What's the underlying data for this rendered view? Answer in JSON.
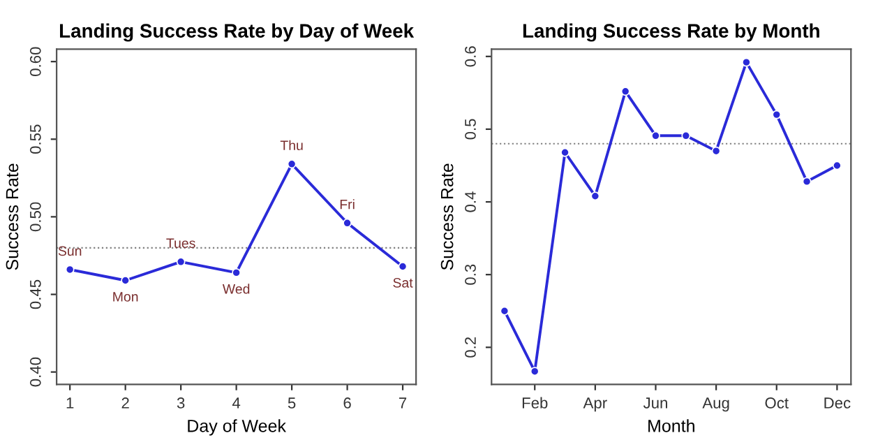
{
  "chart_data": [
    {
      "type": "line",
      "title": "Landing Success Rate by Day of Week",
      "xlabel": "Day of Week",
      "ylabel": "Success Rate",
      "x": [
        1,
        2,
        3,
        4,
        5,
        6,
        7
      ],
      "series": [
        {
          "color": "#2a2ad8",
          "values": [
            0.466,
            0.459,
            0.471,
            0.464,
            0.534,
            0.496,
            0.468
          ]
        }
      ],
      "xlim": [
        0.76,
        7.24
      ],
      "xticks": [
        1,
        2,
        3,
        4,
        5,
        6,
        7
      ],
      "ylim": [
        0.392,
        0.608
      ],
      "yticks": [
        {
          "value": 0.4,
          "label": "0.40"
        },
        {
          "value": 0.45,
          "label": "0.45"
        },
        {
          "value": 0.5,
          "label": "0.50"
        },
        {
          "value": 0.55,
          "label": "0.55"
        },
        {
          "value": 0.6,
          "label": "0.60"
        }
      ],
      "ref_lines": [
        {
          "axis": "y",
          "value": 0.48,
          "color": "#808080",
          "line_style": "dotted"
        }
      ],
      "annotations": [
        {
          "text": "Sun",
          "x": 1,
          "y": 0.466
        },
        {
          "text": "Mon",
          "x": 2,
          "y": 0.459
        },
        {
          "text": "Tues",
          "x": 3,
          "y": 0.471
        },
        {
          "text": "Wed",
          "x": 4,
          "y": 0.464
        },
        {
          "text": "Thu",
          "x": 5,
          "y": 0.534
        },
        {
          "text": "Fri",
          "x": 6,
          "y": 0.496
        },
        {
          "text": "Sat",
          "x": 7,
          "y": 0.468
        }
      ],
      "marker": "circle",
      "line_style": "solid",
      "grid": false,
      "legend": false
    },
    {
      "type": "line",
      "title": "Landing Success Rate by Month",
      "xlabel": "Month",
      "ylabel": "Success Rate",
      "categories": [
        null,
        "Feb",
        null,
        "Apr",
        null,
        "Jun",
        null,
        "Aug",
        null,
        "Oct",
        null,
        "Dec"
      ],
      "series": [
        {
          "color": "#2a2ad8",
          "values": [
            0.25,
            0.167,
            0.468,
            0.408,
            0.552,
            0.491,
            0.491,
            0.47,
            0.592,
            0.52,
            0.428,
            0.45
          ]
        }
      ],
      "ylim": [
        0.149,
        0.61
      ],
      "yticks": [
        0.2,
        0.3,
        0.4,
        0.5,
        0.6
      ],
      "ref_lines": [
        {
          "axis": "y",
          "value": 0.48,
          "color": "#808080",
          "line_style": "dotted"
        }
      ],
      "marker": "circle",
      "line_style": "solid",
      "grid": false,
      "legend": false
    }
  ]
}
